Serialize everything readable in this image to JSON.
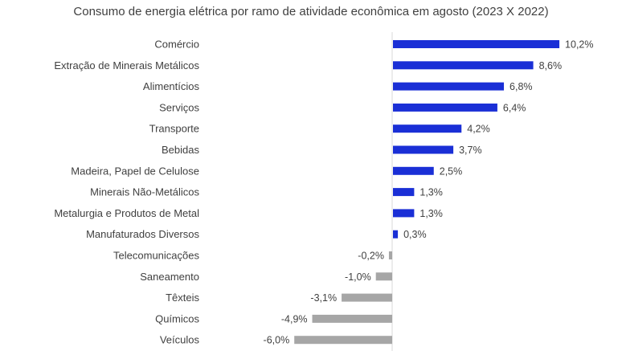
{
  "chart_data": {
    "type": "bar",
    "orientation": "horizontal",
    "title": "Consumo de energia elétrica por ramo de atividade econômica em agosto (2023 X 2022)",
    "categories": [
      "Comércio",
      "Extração de Minerais Metálicos",
      "Alimentícios",
      "Serviços",
      "Transporte",
      "Bebidas",
      "Madeira, Papel de Celulose",
      "Minerais Não-Metálicos",
      "Metalurgia e Produtos de Metal",
      "Manufaturados Diversos",
      "Telecomunicações",
      "Saneamento",
      "Têxteis",
      "Químicos",
      "Veículos"
    ],
    "values": [
      10.2,
      8.6,
      6.8,
      6.4,
      4.2,
      3.7,
      2.5,
      1.3,
      1.3,
      0.3,
      -0.2,
      -1.0,
      -3.1,
      -4.9,
      -6.0
    ],
    "value_labels": [
      "10,2%",
      "8,6%",
      "6,8%",
      "6,4%",
      "4,2%",
      "3,7%",
      "2,5%",
      "1,3%",
      "1,3%",
      "0,3%",
      "-0,2%",
      "-1,0%",
      "-3,1%",
      "-4,9%",
      "-6,0%"
    ],
    "unit": "%",
    "xlim": [
      -6.0,
      10.2
    ],
    "grid": false,
    "legend": "none",
    "colors": {
      "positive": "#1a2fd6",
      "negative": "#a6a6a6",
      "axis": "#d9d9d9"
    }
  }
}
